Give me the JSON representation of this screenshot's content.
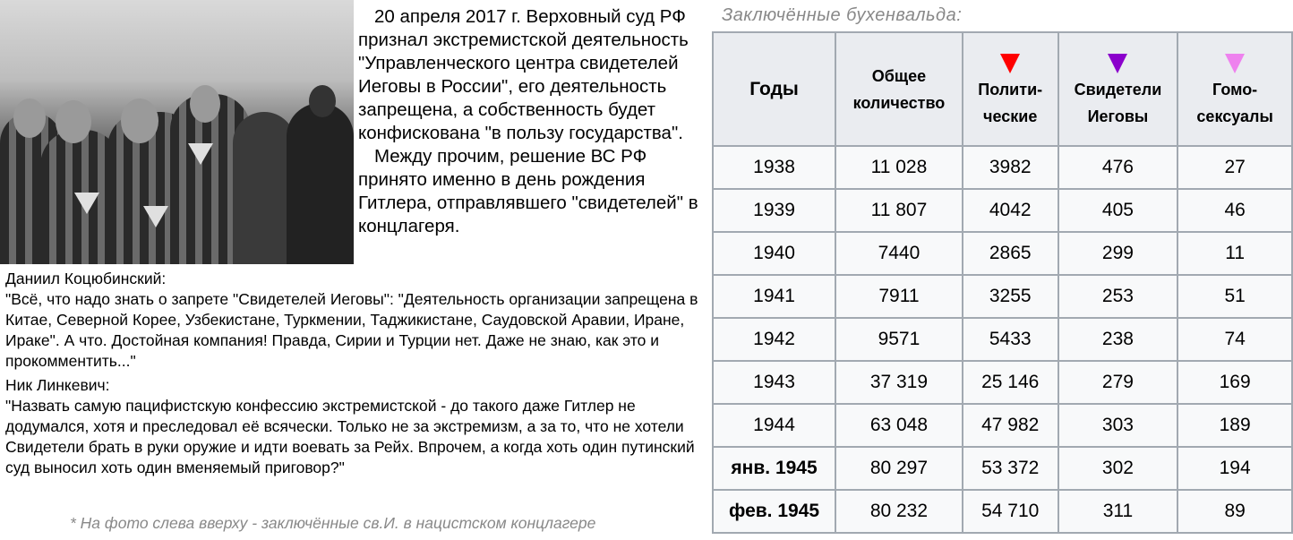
{
  "news": {
    "paragraphs": [
      "20 апреля 2017 г. Верховный суд РФ признал экстремистской деятельность \"Управленческого центра свидетелей Иеговы в России\", его деятельность запрещена, а собственность будет конфискована \"в пользу государства\".",
      "Между прочим, решение ВС РФ принято именно в день рождения Гитлера, отправлявшего \"свидетелей\" в концлагеря."
    ]
  },
  "quotes": [
    {
      "author": "Даниил Коцюбинский:",
      "text": "\"Всё, что надо знать о запрете \"Свидетелей Иеговы\":  \"Деятельность организации запрещена в Китае, Северной Корее, Узбекистане, Туркмении, Таджикистане, Саудовской Аравии, Иране, Ираке\".  А что. Достойная компания! Правда, Сирии и Турции нет. Даже не знаю, как это и прокомментить...\""
    },
    {
      "author": "Ник Линкевич:",
      "text": "\"Назвать самую пацифистскую конфессию экстремистской - до такого даже Гитлер не додумался, хотя и преследовал её всячески. Только не за экстремизм, а за то, что не хотели Свидетели брать в руки оружие и идти воевать за Рейх. Впрочем, а когда хоть один путинский суд выносил хоть один вменяемый приговор?\""
    }
  ],
  "footnote": "* На фото слева вверху - заключённые св.И. в нацистском концлагере",
  "table": {
    "title": "Заключённые  бухенвальда:",
    "headers": [
      "Годы",
      "Общее количество",
      "Полити-ческие",
      "Свидетели Иеговы",
      "Гомо-сексуалы"
    ],
    "triangle_colors": {
      "political": "#ff0000",
      "witnesses": "#8b00cc",
      "homosexuals": "#ee82ee"
    },
    "rows": [
      [
        "1938",
        "11 028",
        "3982",
        "476",
        "27"
      ],
      [
        "1939",
        "11 807",
        "4042",
        "405",
        "46"
      ],
      [
        "1940",
        "7440",
        "2865",
        "299",
        "11"
      ],
      [
        "1941",
        "7911",
        "3255",
        "253",
        "51"
      ],
      [
        "1942",
        "9571",
        "5433",
        "238",
        "74"
      ],
      [
        "1943",
        "37 319",
        "25 146",
        "279",
        "169"
      ],
      [
        "1944",
        "63 048",
        "47 982",
        "303",
        "189"
      ],
      [
        "янв. 1945",
        "80 297",
        "53 372",
        "302",
        "194"
      ],
      [
        "фев. 1945",
        "80 232",
        "54 710",
        "311",
        "89"
      ]
    ]
  }
}
